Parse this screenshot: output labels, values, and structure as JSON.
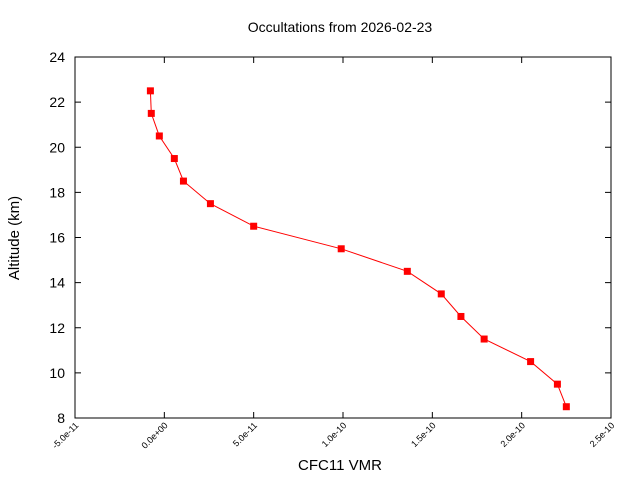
{
  "chart_data": {
    "type": "line",
    "title": "Occultations from 2026-02-23",
    "xlabel": "CFC11 VMR",
    "ylabel": "Altitude (km)",
    "xlim": [
      -5e-11,
      2.5e-10
    ],
    "ylim": [
      8,
      24
    ],
    "x_ticks": [
      -5e-11,
      0,
      5e-11,
      1e-10,
      1.5e-10,
      2e-10,
      2.5e-10
    ],
    "x_tick_labels": [
      "-5.0e-11",
      "0.0e+00",
      "5.0e-11",
      "1.0e-10",
      "1.5e-10",
      "2.0e-10",
      "2.5e-10"
    ],
    "y_ticks": [
      8,
      10,
      12,
      14,
      16,
      18,
      20,
      22,
      24
    ],
    "y_tick_labels": [
      "8",
      "10",
      "12",
      "14",
      "16",
      "18",
      "20",
      "22",
      "24"
    ],
    "grid": false,
    "marker": "square",
    "color": "#ff0000",
    "series": [
      {
        "x": [
          -7.8e-12,
          -7.3e-12,
          -2.8e-12,
          5.6e-12,
          1.07e-11,
          2.58e-11,
          5e-11,
          9.9e-11,
          1.36e-10,
          1.55e-10,
          1.66e-10,
          1.79e-10,
          2.05e-10,
          2.2e-10,
          2.25e-10
        ],
        "y": [
          22.5,
          21.5,
          20.5,
          19.5,
          18.5,
          17.5,
          16.5,
          15.5,
          14.5,
          13.5,
          12.5,
          11.5,
          10.5,
          9.5,
          8.5
        ]
      }
    ]
  }
}
